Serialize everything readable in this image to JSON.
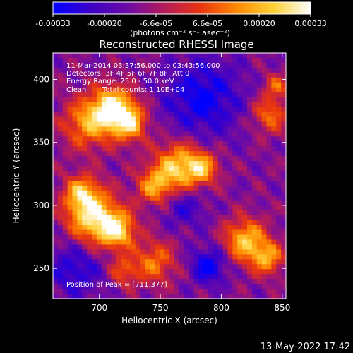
{
  "chart_data": {
    "type": "heatmap",
    "title": "Reconstructed RHESSI Image",
    "xlabel": "Heliocentric X (arcsec)",
    "ylabel": "Heliocentric Y (arcsec)",
    "xlim": [
      662,
      853
    ],
    "ylim": [
      226,
      421
    ],
    "x_ticks": [
      700,
      750,
      800,
      850
    ],
    "y_ticks": [
      250,
      300,
      350,
      400
    ],
    "colorbar": {
      "range": [
        -0.00033,
        0.00033
      ],
      "ticks": [
        "-0.00033",
        "-0.00020",
        "-6.6e-05",
        "6.6e-05",
        "0.00020",
        "0.00033"
      ],
      "unit_label": "(photons cm⁻² s⁻¹ asec⁻²)",
      "colors": [
        "#0000ff",
        "#3b00c8",
        "#6a0aa8",
        "#b21a5c",
        "#e83510",
        "#ff8a00",
        "#ffd23a",
        "#ffffff"
      ]
    },
    "grid": false,
    "annotations": {
      "time_range": "11-Mar-2014 03:37:56.000 to 03:43:56.000",
      "detectors": "Detectors: 3F 4F 5F 6F 7F 8F, Att 0",
      "energy_range": "Energy Range: 25.0 - 50.0 keV",
      "algorithm": "Clean",
      "total_counts": "Total counts: 1.10E+04",
      "peak": "Position of Peak = [711,377]"
    },
    "peak_position": [
      711,
      377
    ],
    "blobs": [
      {
        "x": 711,
        "y": 377,
        "sigma": 12,
        "amp": 1.0
      },
      {
        "x": 725,
        "y": 365,
        "sigma": 10,
        "amp": 0.75
      },
      {
        "x": 690,
        "y": 365,
        "sigma": 14,
        "amp": 0.65
      },
      {
        "x": 695,
        "y": 290,
        "sigma": 15,
        "amp": 0.95
      },
      {
        "x": 715,
        "y": 280,
        "sigma": 10,
        "amp": 0.8
      },
      {
        "x": 685,
        "y": 310,
        "sigma": 10,
        "amp": 0.65
      },
      {
        "x": 765,
        "y": 330,
        "sigma": 14,
        "amp": 0.85
      },
      {
        "x": 745,
        "y": 315,
        "sigma": 10,
        "amp": 0.6
      },
      {
        "x": 785,
        "y": 330,
        "sigma": 9,
        "amp": 0.6
      },
      {
        "x": 820,
        "y": 272,
        "sigma": 12,
        "amp": 0.8
      },
      {
        "x": 838,
        "y": 258,
        "sigma": 9,
        "amp": 0.65
      },
      {
        "x": 745,
        "y": 255,
        "sigma": 12,
        "amp": 0.55
      },
      {
        "x": 720,
        "y": 248,
        "sigma": 8,
        "amp": 0.45
      },
      {
        "x": 840,
        "y": 372,
        "sigma": 10,
        "amp": 0.55
      },
      {
        "x": 845,
        "y": 395,
        "sigma": 7,
        "amp": 0.45
      },
      {
        "x": 790,
        "y": 252,
        "sigma": 10,
        "amp": -0.55
      },
      {
        "x": 785,
        "y": 385,
        "sigma": 22,
        "amp": -0.5
      },
      {
        "x": 680,
        "y": 250,
        "sigma": 16,
        "amp": -0.4
      },
      {
        "x": 770,
        "y": 300,
        "sigma": 12,
        "amp": -0.35
      }
    ]
  },
  "footer": {
    "timestamp": "13-May-2022 17:42"
  }
}
